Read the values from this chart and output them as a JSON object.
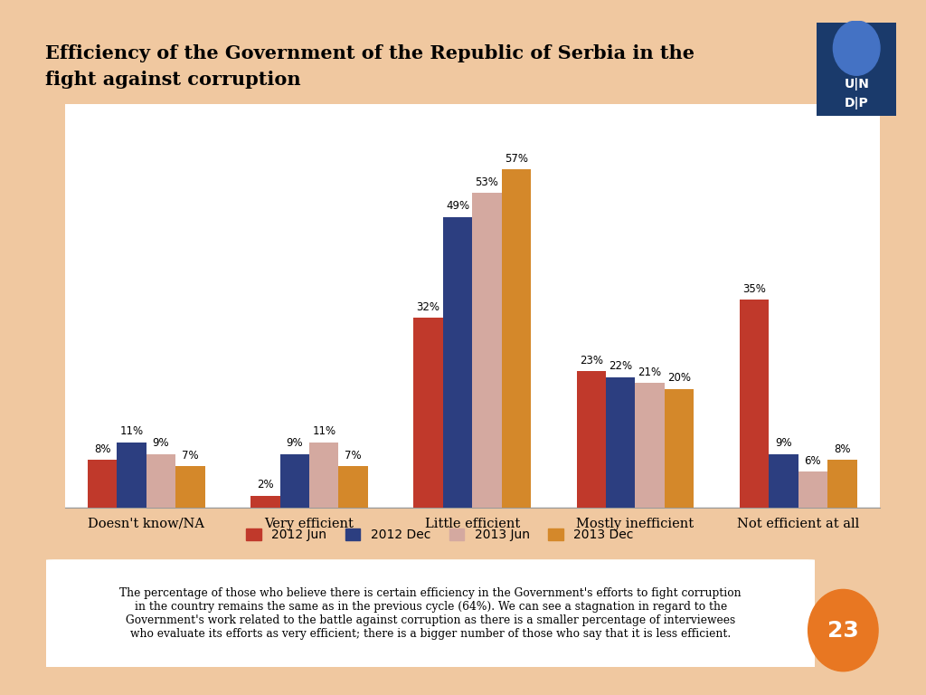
{
  "title_line1": "Efficiency of the Government of the Republic of Serbia in the",
  "title_line2": "fight against corruption",
  "categories": [
    "Doesn't know/NA",
    "Very efficient",
    "Little efficient",
    "Mostly inefficient",
    "Not efficient at all"
  ],
  "series": {
    "2012 Jun": [
      8,
      2,
      32,
      23,
      35
    ],
    "2012 Dec": [
      11,
      9,
      49,
      22,
      9
    ],
    "2013 Jun": [
      9,
      11,
      53,
      21,
      6
    ],
    "2013 Dec": [
      7,
      7,
      57,
      20,
      8
    ]
  },
  "colors": {
    "2012 Jun": "#C0392B",
    "2012 Dec": "#2C3E80",
    "2013 Jun": "#D4A9A0",
    "2013 Dec": "#D4882A"
  },
  "background_color": "#FFFFFF",
  "outer_background": "#F0C8A0",
  "annotation_text": "The percentage of those who believe there is certain efficiency in the Government's efforts to fight corruption\nin the country remains the same as in the previous cycle (64%). We can see a stagnation in regard to the\nGovernment's work related to the battle against corruption as there is a smaller percentage of interviewees\nwho evaluate its efforts as very efficient; there is a bigger number of those who say that it is less efficient.",
  "page_number": "23"
}
